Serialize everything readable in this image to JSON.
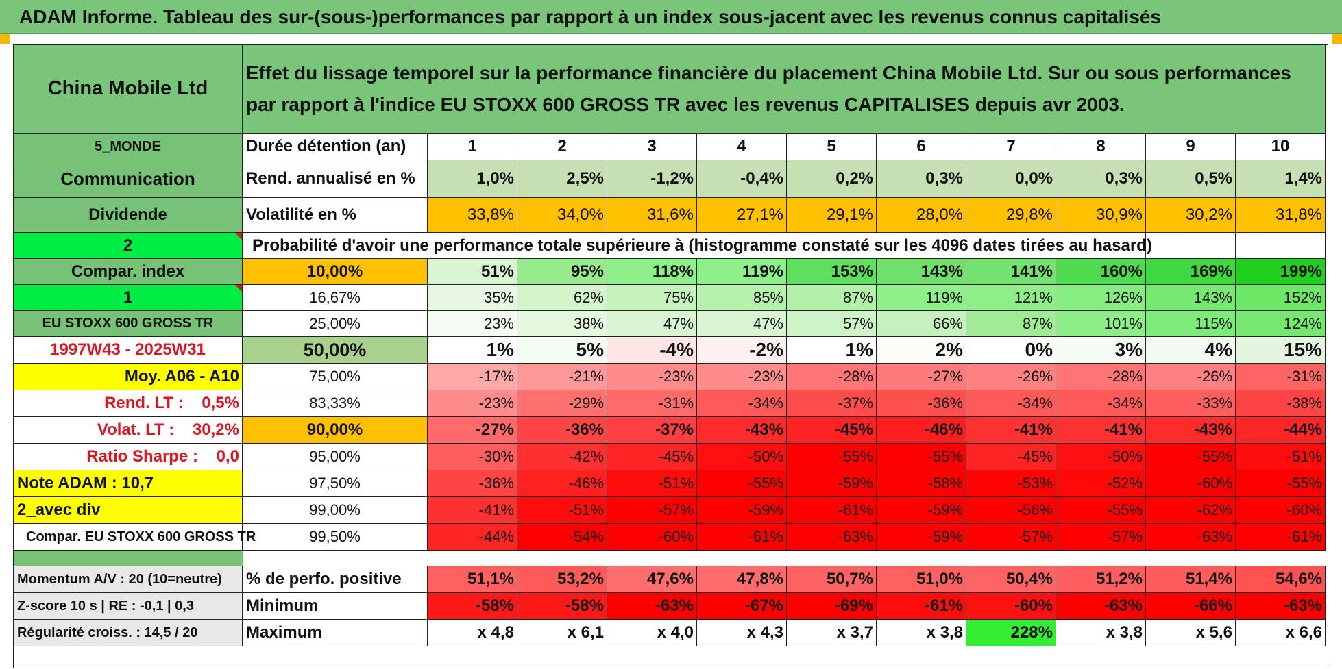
{
  "title": "ADAM Informe. Tableau des sur-(sous-)performances par rapport à un index sous-jacent avec les revenus connus capitalisés",
  "header": {
    "company": "China Mobile Ltd",
    "description": "Effet du lissage temporel sur la performance financière du placement China Mobile Ltd. Sur ou sous performances par rapport à l'indice EU STOXX 600 GROSS TR avec les revenus CAPITALISES depuis avr 2003."
  },
  "left_labels": {
    "region": "5_MONDE",
    "sector": "Communication",
    "dividend": "Dividende",
    "code": "2",
    "compar_index": "Compar. index",
    "index_num": "1",
    "index_name": "EU STOXX 600 GROSS TR",
    "period": "1997W43 - 2025W31",
    "moy": "Moy. A06 - A10",
    "rend_lt": "Rend. LT :    0,5%",
    "volat_lt": "Volat. LT :    30,2%",
    "ratio_sharpe": "Ratio Sharpe :    0,0",
    "note_adam": "Note ADAM : 10,7",
    "avec_div": "2_avec div",
    "compar_eu": "Compar. EU STOXX 600 GROSS TR",
    "momentum": "Momentum A/V : 20 (10=neutre)",
    "zscore": "Z-score 10 s | RE : -0,1 | 0,3",
    "regularite": "Régularité croiss. : 14,5 / 20"
  },
  "row_labels": {
    "duration": "Durée détention (an)",
    "rendement": "Rend. annualisé en %",
    "volatilite": "Volatilité en %",
    "probability": "Probabilité d'avoir une performance totale supérieure à (histogramme constaté sur les 4096 dates tirées au hasard)",
    "pct_positive": "% de perfo. positive",
    "minimum": "Minimum",
    "maximum": "Maximum"
  },
  "years": [
    "1",
    "2",
    "3",
    "4",
    "5",
    "6",
    "7",
    "8",
    "9",
    "10"
  ],
  "rendement": [
    "1,0%",
    "2,5%",
    "-1,2%",
    "-0,4%",
    "0,2%",
    "0,3%",
    "0,0%",
    "0,3%",
    "0,5%",
    "1,4%"
  ],
  "volatilite": [
    "33,8%",
    "34,0%",
    "31,6%",
    "27,1%",
    "29,1%",
    "28,0%",
    "29,8%",
    "30,9%",
    "30,2%",
    "31,8%"
  ],
  "percentile_rows": [
    {
      "label": "10,00%",
      "values": [
        "51%",
        "95%",
        "118%",
        "119%",
        "153%",
        "143%",
        "141%",
        "160%",
        "169%",
        "199%"
      ]
    },
    {
      "label": "16,67%",
      "values": [
        "35%",
        "62%",
        "75%",
        "85%",
        "87%",
        "119%",
        "121%",
        "126%",
        "143%",
        "152%"
      ]
    },
    {
      "label": "25,00%",
      "values": [
        "23%",
        "38%",
        "47%",
        "47%",
        "57%",
        "66%",
        "87%",
        "101%",
        "115%",
        "124%"
      ]
    },
    {
      "label": "50,00%",
      "values": [
        "1%",
        "5%",
        "-4%",
        "-2%",
        "1%",
        "2%",
        "0%",
        "3%",
        "4%",
        "15%"
      ]
    },
    {
      "label": "75,00%",
      "values": [
        "-17%",
        "-21%",
        "-23%",
        "-23%",
        "-28%",
        "-27%",
        "-26%",
        "-28%",
        "-26%",
        "-31%"
      ]
    },
    {
      "label": "83,33%",
      "values": [
        "-23%",
        "-29%",
        "-31%",
        "-34%",
        "-37%",
        "-36%",
        "-34%",
        "-34%",
        "-33%",
        "-38%"
      ]
    },
    {
      "label": "90,00%",
      "values": [
        "-27%",
        "-36%",
        "-37%",
        "-43%",
        "-45%",
        "-46%",
        "-41%",
        "-41%",
        "-43%",
        "-44%"
      ]
    },
    {
      "label": "95,00%",
      "values": [
        "-30%",
        "-42%",
        "-45%",
        "-50%",
        "-55%",
        "-55%",
        "-45%",
        "-50%",
        "-55%",
        "-51%"
      ]
    },
    {
      "label": "97,50%",
      "values": [
        "-36%",
        "-46%",
        "-51%",
        "-55%",
        "-59%",
        "-58%",
        "-53%",
        "-52%",
        "-60%",
        "-55%"
      ]
    },
    {
      "label": "99,00%",
      "values": [
        "-41%",
        "-51%",
        "-57%",
        "-59%",
        "-61%",
        "-59%",
        "-56%",
        "-55%",
        "-62%",
        "-60%"
      ]
    },
    {
      "label": "99,50%",
      "values": [
        "-44%",
        "-54%",
        "-60%",
        "-61%",
        "-63%",
        "-59%",
        "-57%",
        "-57%",
        "-63%",
        "-61%"
      ]
    }
  ],
  "pct_positive": [
    "51,1%",
    "53,2%",
    "47,6%",
    "47,8%",
    "50,7%",
    "51,0%",
    "50,4%",
    "51,2%",
    "51,4%",
    "54,6%"
  ],
  "minimum": [
    "-58%",
    "-58%",
    "-63%",
    "-67%",
    "-69%",
    "-61%",
    "-60%",
    "-63%",
    "-66%",
    "-63%"
  ],
  "maximum": [
    "x 4,8",
    "x 6,1",
    "x 4,0",
    "x 4,3",
    "x 3,7",
    "x 3,8",
    "228%",
    "x 3,8",
    "x 5,6",
    "x 6,6"
  ],
  "colors": {
    "header_green": "#79c67a",
    "label_green": "#76c277",
    "light_green": "#c6e0b4",
    "orange": "#ffc000",
    "yellow": "#ffff00",
    "bright_green": "#00ee44",
    "red_text": "#e0141e"
  },
  "heat_colors": {
    "row0": [
      "#d9f5d3",
      "#96ec8c",
      "#8ef088",
      "#8ef088",
      "#5ee05e",
      "#70e06c",
      "#74e270",
      "#4edc4e",
      "#40d840",
      "#22d022"
    ],
    "row1": [
      "#e8f7e4",
      "#d4f5cc",
      "#c6f3bd",
      "#b6f1ad",
      "#b4f0aa",
      "#8ef088",
      "#8def86",
      "#86ee80",
      "#76ea70",
      "#6ce866"
    ],
    "row2": [
      "#f4fbf2",
      "#e4f7df",
      "#d9f5d3",
      "#d9f5d3",
      "#cff3c8",
      "#c6f1be",
      "#9feb96",
      "#8ded86",
      "#7eea78",
      "#76e870"
    ],
    "row3": [
      "#ffffff",
      "#f4fbf2",
      "#ffe6e6",
      "#fff1f1",
      "#ffffff",
      "#f9fcf8",
      "#ffffff",
      "#f6fbf4",
      "#f3faf1",
      "#e4f6e0"
    ],
    "row4": [
      "#ffa8a8",
      "#ff9898",
      "#ff8c8c",
      "#ff8c8c",
      "#ff7575",
      "#ff7b7b",
      "#ff8080",
      "#ff7575",
      "#ff8080",
      "#ff6464"
    ],
    "row5": [
      "#ff8c8c",
      "#ff7070",
      "#ff6a6a",
      "#ff5a5a",
      "#ff4c4c",
      "#ff5050",
      "#ff5a5a",
      "#ff5a5a",
      "#ff5e5e",
      "#ff4444"
    ],
    "row6": [
      "#ff6a6a",
      "#ff4444",
      "#ff4040",
      "#ff2a2a",
      "#ff2222",
      "#ff1e1e",
      "#ff3232",
      "#ff3232",
      "#ff2a2a",
      "#ff2626"
    ],
    "row7": [
      "#ff5e5e",
      "#ff3030",
      "#ff2424",
      "#ff1010",
      "#ff0000",
      "#ff0000",
      "#ff2424",
      "#ff1010",
      "#ff0000",
      "#ff0c0c"
    ],
    "row8": [
      "#ff4444",
      "#ff2020",
      "#ff0c0c",
      "#ff0000",
      "#ff0000",
      "#ff0000",
      "#ff0404",
      "#ff0808",
      "#ff0000",
      "#ff0000"
    ],
    "row9": [
      "#ff3030",
      "#ff0c0c",
      "#ff0000",
      "#ff0000",
      "#ff0000",
      "#ff0000",
      "#ff0000",
      "#ff0000",
      "#ff0000",
      "#ff0000"
    ],
    "row10": [
      "#ff2424",
      "#ff0000",
      "#ff0000",
      "#ff0000",
      "#ff0000",
      "#ff0000",
      "#ff0000",
      "#ff0000",
      "#ff0000",
      "#ff0000"
    ],
    "pct_positive": [
      "#ff6060",
      "#ff5a5a",
      "#ff6e6e",
      "#ff6c6c",
      "#ff6262",
      "#ff6060",
      "#ff6464",
      "#ff5e5e",
      "#ff5c5c",
      "#ff5252"
    ],
    "minimum": [
      "#ff1818",
      "#ff1818",
      "#ff0000",
      "#ff0000",
      "#ff0000",
      "#ff0c0c",
      "#ff1010",
      "#ff0000",
      "#ff0000",
      "#ff0000"
    ],
    "maximum": [
      "#ffffff",
      "#ffffff",
      "#ffffff",
      "#ffffff",
      "#ffffff",
      "#ffffff",
      "#33ee33",
      "#ffffff",
      "#ffffff",
      "#ffffff"
    ]
  }
}
